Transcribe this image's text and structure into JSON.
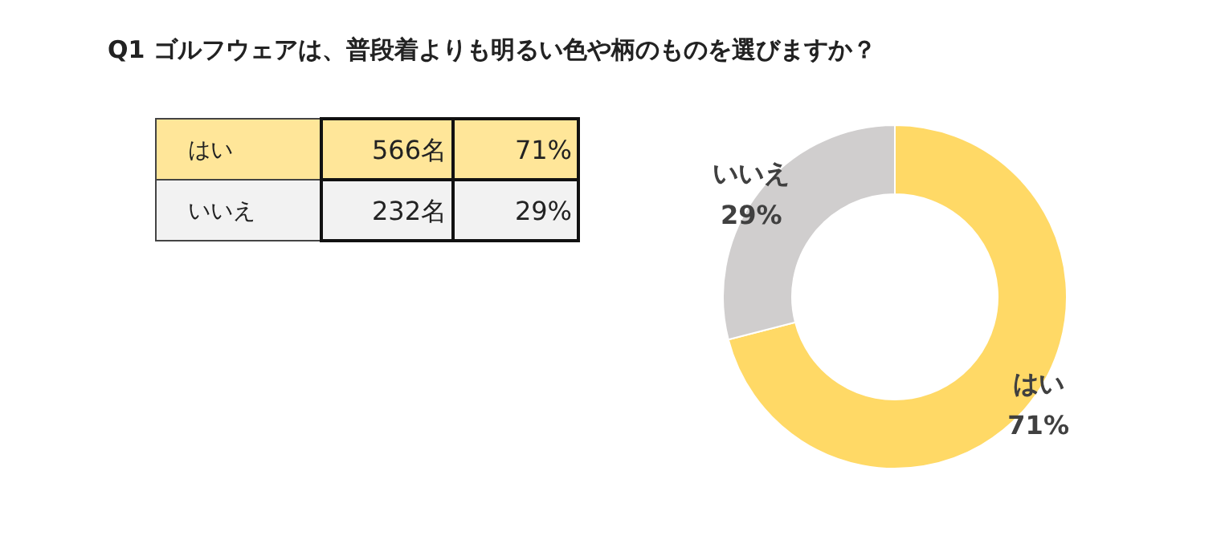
{
  "chart_data": [
    {
      "type": "other",
      "title": "Q1 ゴルフウェアは、普段着よりも明るい色や柄のものを選びますか？",
      "annotations": [
        "はい",
        "566名",
        "71%",
        "いいえ",
        "232名",
        "29%"
      ],
      "colors": [
        "#ffe699",
        "#f2f2f2"
      ]
    },
    {
      "type": "donut",
      "categories": [
        "はい",
        "いいえ"
      ],
      "values": [
        71,
        29
      ],
      "value_labels": [
        "71%",
        "29%"
      ],
      "colors": [
        "#ffd966",
        "#d0cece"
      ]
    }
  ]
}
